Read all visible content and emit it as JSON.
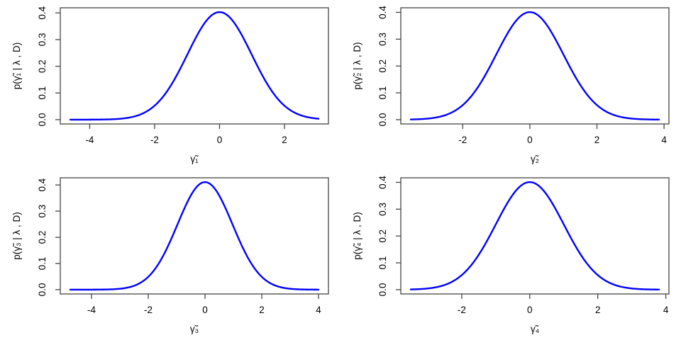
{
  "page": {
    "background": "#ffffff"
  },
  "style": {
    "curve_color": "#0000ff",
    "axis_color": "#454545",
    "text_color": "#000000"
  },
  "chart_data": [
    {
      "id": "gamma1",
      "type": "line",
      "title": "",
      "xlabel": "γ̃₁",
      "ylabel": "p(γ̃₁ | λ , D)",
      "grid": false,
      "legend": "none",
      "xticks": {
        "values": [
          -4,
          -2,
          0,
          2
        ],
        "labels": [
          "-4",
          "-2",
          "0",
          "2"
        ]
      },
      "yticks": {
        "values": [
          0,
          0.1,
          0.2,
          0.3,
          0.4
        ],
        "labels": [
          "0.0",
          "0.1",
          "0.2",
          "0.3",
          "0.4"
        ]
      },
      "curve": {
        "shape": "gaussian",
        "mu": 0,
        "sigma": 0.99,
        "peak": 0.403,
        "domain": [
          -4.6,
          3.05
        ]
      },
      "points": {
        "x": [
          -4.5,
          -4,
          -3.5,
          -3,
          -2.5,
          -2,
          -1.5,
          -1,
          -0.5,
          0,
          0.5,
          1,
          1.5,
          2,
          2.5,
          3
        ],
        "y": [
          0.0,
          0.0001,
          0.0008,
          0.0041,
          0.0166,
          0.0524,
          0.1279,
          0.242,
          0.3548,
          0.403,
          0.3548,
          0.242,
          0.1279,
          0.0524,
          0.0166,
          0.0041
        ]
      }
    },
    {
      "id": "gamma2",
      "type": "line",
      "title": "",
      "xlabel": "γ̃₂",
      "ylabel": "p(γ̃₂ | λ , D)",
      "grid": false,
      "legend": "none",
      "xticks": {
        "values": [
          -2,
          0,
          2,
          4
        ],
        "labels": [
          "-2",
          "0",
          "2",
          "4"
        ]
      },
      "yticks": {
        "values": [
          0,
          0.1,
          0.2,
          0.3,
          0.4
        ],
        "labels": [
          "0.0",
          "0.1",
          "0.2",
          "0.3",
          "0.4"
        ]
      },
      "curve": {
        "shape": "gaussian",
        "mu": 0,
        "sigma": 1.0,
        "peak": 0.401,
        "domain": [
          -3.55,
          3.85
        ]
      },
      "points": {
        "x": [
          -3.5,
          -3,
          -2.5,
          -2,
          -1.5,
          -1,
          -0.5,
          0,
          0.5,
          1,
          1.5,
          2,
          2.5,
          3,
          3.5
        ],
        "y": [
          0.0009,
          0.0045,
          0.0176,
          0.0543,
          0.1302,
          0.2432,
          0.3539,
          0.401,
          0.3539,
          0.2432,
          0.1302,
          0.0543,
          0.0176,
          0.0045,
          0.0009
        ]
      }
    },
    {
      "id": "gamma3",
      "type": "line",
      "title": "",
      "xlabel": "γ̃₃",
      "ylabel": "p(γ̃₃ | λ , D)",
      "grid": false,
      "legend": "none",
      "xticks": {
        "values": [
          -4,
          -2,
          0,
          2,
          4
        ],
        "labels": [
          "-4",
          "-2",
          "0",
          "2",
          "4"
        ]
      },
      "yticks": {
        "values": [
          0,
          0.1,
          0.2,
          0.3,
          0.4
        ],
        "labels": [
          "0.0",
          "0.1",
          "0.2",
          "0.3",
          "0.4"
        ]
      },
      "curve": {
        "shape": "gaussian",
        "mu": 0,
        "sigma": 0.97,
        "peak": 0.411,
        "domain": [
          -4.75,
          4.0
        ]
      },
      "points": {
        "x": [
          -4.5,
          -4,
          -3.5,
          -3,
          -2.5,
          -2,
          -1.5,
          -1,
          -0.5,
          0,
          0.5,
          1,
          1.5,
          2,
          2.5,
          3,
          3.5,
          4
        ],
        "y": [
          0.0,
          0.0001,
          0.0006,
          0.0034,
          0.0148,
          0.049,
          0.1243,
          0.2416,
          0.3599,
          0.411,
          0.3599,
          0.2416,
          0.1243,
          0.049,
          0.0148,
          0.0034,
          0.0006,
          0.0001
        ]
      }
    },
    {
      "id": "gamma4",
      "type": "line",
      "title": "",
      "xlabel": "γ̃₄",
      "ylabel": "p(γ̃₄ | λ , D)",
      "grid": false,
      "legend": "none",
      "xticks": {
        "values": [
          -2,
          0,
          2,
          4
        ],
        "labels": [
          "-2",
          "0",
          "2",
          "4"
        ]
      },
      "yticks": {
        "values": [
          0,
          0.1,
          0.2,
          0.3,
          0.4
        ],
        "labels": [
          "0.0",
          "0.1",
          "0.2",
          "0.3",
          "0.4"
        ]
      },
      "curve": {
        "shape": "gaussian",
        "mu": 0,
        "sigma": 1.0,
        "peak": 0.401,
        "domain": [
          -3.5,
          3.8
        ]
      },
      "points": {
        "x": [
          -3.5,
          -3,
          -2.5,
          -2,
          -1.5,
          -1,
          -0.5,
          0,
          0.5,
          1,
          1.5,
          2,
          2.5,
          3,
          3.5
        ],
        "y": [
          0.0009,
          0.0045,
          0.0176,
          0.0543,
          0.1302,
          0.2432,
          0.3539,
          0.401,
          0.3539,
          0.2432,
          0.1302,
          0.0543,
          0.0176,
          0.0045,
          0.0009
        ]
      }
    }
  ]
}
